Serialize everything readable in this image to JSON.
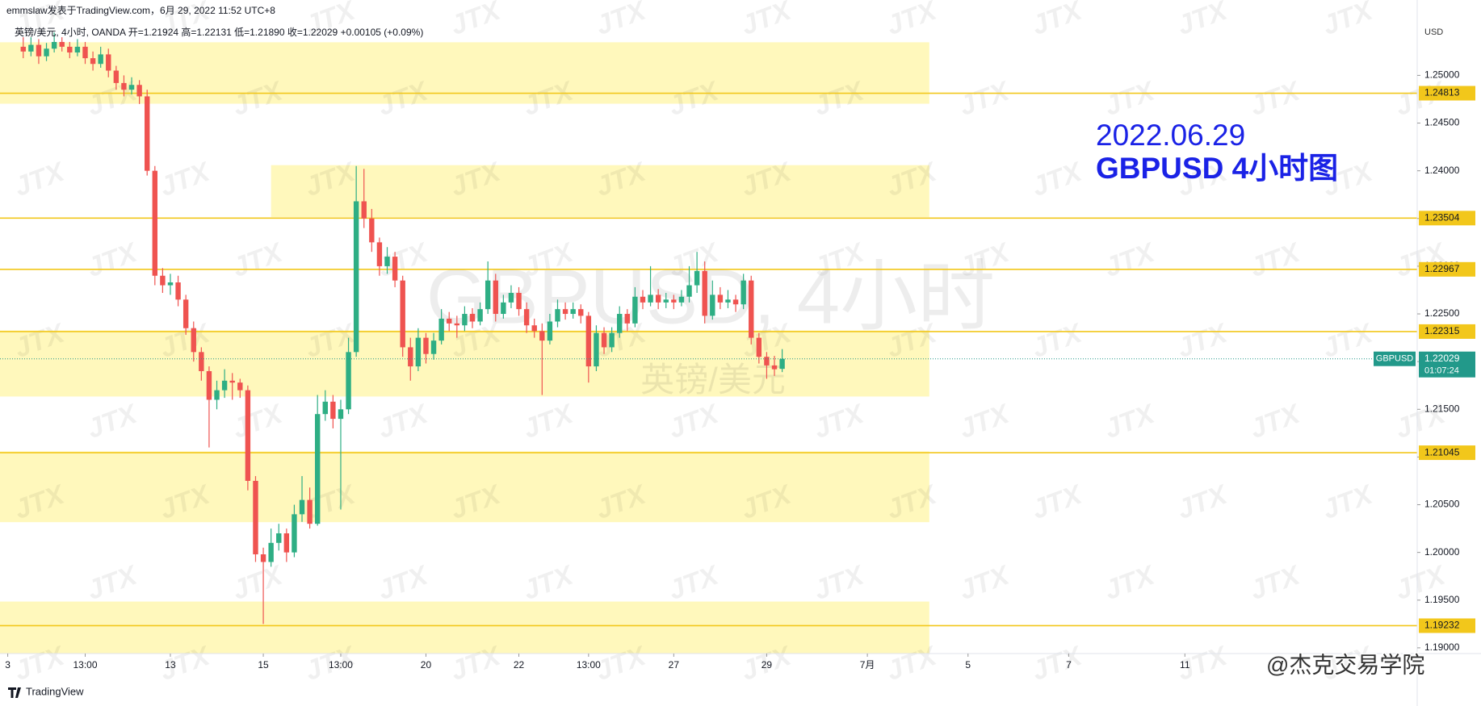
{
  "header": {
    "byline": "emmslaw发表于TradingView.com，6月 29, 2022 11:52 UTC+8",
    "legend": "英镑/美元, 4小时, OANDA  开=1.21924  高=1.22131  低=1.21890  收=1.22029  +0.00105 (+0.09%)"
  },
  "watermark": {
    "symbol": "GBPUSD, 4小时",
    "name": "英镑/美元",
    "brand": "JTX",
    "credit": "@杰克交易学院"
  },
  "footer": {
    "logo": "TradingView"
  },
  "chart_data": {
    "type": "candlestick",
    "title": "2022.06.29",
    "subtitle": "GBPUSD 4小时图",
    "y_unit": "USD",
    "up_color": "#2eae84",
    "down_color": "#ef5350",
    "x": [
      2,
      3,
      4,
      5,
      6,
      7,
      8,
      9,
      10,
      11,
      12,
      13,
      14,
      15,
      16,
      17,
      18,
      19,
      20,
      21,
      22,
      23,
      24,
      25,
      26,
      27,
      28,
      29,
      30,
      31,
      32,
      33,
      34,
      35,
      36,
      37,
      38,
      39,
      40,
      41,
      42,
      43,
      44,
      45,
      46,
      47,
      48,
      49,
      50,
      51,
      52,
      53,
      54,
      55,
      56,
      57,
      58,
      59,
      60,
      61,
      62,
      63,
      64,
      65,
      66,
      67,
      68,
      69,
      70,
      71,
      72,
      73,
      74,
      75,
      76,
      77,
      78,
      79,
      80,
      81,
      82,
      83,
      84,
      85,
      86,
      87,
      88,
      89,
      90,
      91,
      92,
      93,
      94,
      95,
      96,
      97,
      98,
      99,
      100
    ],
    "ohlc": [
      [
        1.253,
        1.254,
        1.2518,
        1.2525
      ],
      [
        1.2525,
        1.254,
        1.252,
        1.2532
      ],
      [
        1.2532,
        1.2538,
        1.2512,
        1.252
      ],
      [
        1.252,
        1.2534,
        1.2515,
        1.2528
      ],
      [
        1.2528,
        1.2545,
        1.2524,
        1.2535
      ],
      [
        1.2535,
        1.254,
        1.2525,
        1.253
      ],
      [
        1.253,
        1.2535,
        1.2518,
        1.2524
      ],
      [
        1.2524,
        1.2538,
        1.252,
        1.253
      ],
      [
        1.253,
        1.2535,
        1.2512,
        1.2518
      ],
      [
        1.2518,
        1.2525,
        1.2505,
        1.2512
      ],
      [
        1.2512,
        1.253,
        1.2508,
        1.2522
      ],
      [
        1.2522,
        1.2528,
        1.2498,
        1.2505
      ],
      [
        1.2505,
        1.251,
        1.2485,
        1.2492
      ],
      [
        1.2492,
        1.25,
        1.2478,
        1.2485
      ],
      [
        1.2485,
        1.2498,
        1.248,
        1.249
      ],
      [
        1.249,
        1.2495,
        1.247,
        1.2478
      ],
      [
        1.2478,
        1.2485,
        1.2395,
        1.24
      ],
      [
        1.24,
        1.2405,
        1.228,
        1.229
      ],
      [
        1.229,
        1.2298,
        1.2272,
        1.228
      ],
      [
        1.228,
        1.2292,
        1.227,
        1.2283
      ],
      [
        1.2283,
        1.229,
        1.2258,
        1.2265
      ],
      [
        1.2265,
        1.227,
        1.2228,
        1.2235
      ],
      [
        1.2235,
        1.2242,
        1.22,
        1.221
      ],
      [
        1.221,
        1.2215,
        1.218,
        1.219
      ],
      [
        1.219,
        1.2195,
        1.211,
        1.216
      ],
      [
        1.216,
        1.218,
        1.215,
        1.217
      ],
      [
        1.217,
        1.2192,
        1.2162,
        1.218
      ],
      [
        1.218,
        1.2188,
        1.216,
        1.2178
      ],
      [
        1.2178,
        1.2182,
        1.2162,
        1.217
      ],
      [
        1.217,
        1.2175,
        1.2065,
        1.2075
      ],
      [
        1.2075,
        1.208,
        1.199,
        1.1998
      ],
      [
        1.1998,
        1.2005,
        1.1925,
        1.199
      ],
      [
        1.199,
        1.2025,
        1.1985,
        1.201
      ],
      [
        1.201,
        1.203,
        1.2002,
        1.202
      ],
      [
        1.202,
        1.2025,
        1.199,
        1.2
      ],
      [
        1.2,
        1.205,
        1.1995,
        1.204
      ],
      [
        1.204,
        1.208,
        1.2032,
        1.2055
      ],
      [
        1.2055,
        1.2068,
        1.2025,
        1.203
      ],
      [
        1.203,
        1.2165,
        1.2028,
        1.2145
      ],
      [
        1.2145,
        1.217,
        1.2138,
        1.2158
      ],
      [
        1.2158,
        1.2165,
        1.213,
        1.214
      ],
      [
        1.214,
        1.216,
        1.2045,
        1.215
      ],
      [
        1.215,
        1.2225,
        1.2145,
        1.221
      ],
      [
        1.221,
        1.2405,
        1.2205,
        1.2368
      ],
      [
        1.2368,
        1.2402,
        1.234,
        1.235
      ],
      [
        1.235,
        1.236,
        1.2315,
        1.2325
      ],
      [
        1.2325,
        1.233,
        1.229,
        1.23
      ],
      [
        1.23,
        1.232,
        1.2292,
        1.231
      ],
      [
        1.231,
        1.2315,
        1.2278,
        1.2285
      ],
      [
        1.2285,
        1.229,
        1.2205,
        1.2215
      ],
      [
        1.2215,
        1.2225,
        1.218,
        1.2195
      ],
      [
        1.2195,
        1.2235,
        1.219,
        1.2225
      ],
      [
        1.2225,
        1.223,
        1.2198,
        1.2208
      ],
      [
        1.2208,
        1.223,
        1.2202,
        1.2222
      ],
      [
        1.2222,
        1.2255,
        1.2218,
        1.2245
      ],
      [
        1.2245,
        1.2252,
        1.2232,
        1.224
      ],
      [
        1.224,
        1.2248,
        1.2225,
        1.2238
      ],
      [
        1.2238,
        1.2258,
        1.2232,
        1.225
      ],
      [
        1.225,
        1.2256,
        1.2235,
        1.2242
      ],
      [
        1.2242,
        1.2262,
        1.2238,
        1.2255
      ],
      [
        1.2255,
        1.2305,
        1.225,
        1.2285
      ],
      [
        1.2285,
        1.2292,
        1.2242,
        1.225
      ],
      [
        1.225,
        1.227,
        1.2245,
        1.2262
      ],
      [
        1.2262,
        1.228,
        1.2256,
        1.2272
      ],
      [
        1.2272,
        1.2278,
        1.2248,
        1.2255
      ],
      [
        1.2255,
        1.2262,
        1.223,
        1.2238
      ],
      [
        1.2238,
        1.2245,
        1.2225,
        1.2232
      ],
      [
        1.2232,
        1.224,
        1.2165,
        1.2222
      ],
      [
        1.2222,
        1.225,
        1.2218,
        1.2242
      ],
      [
        1.2242,
        1.2265,
        1.2236,
        1.2255
      ],
      [
        1.2255,
        1.2262,
        1.2244,
        1.225
      ],
      [
        1.225,
        1.2262,
        1.2245,
        1.2255
      ],
      [
        1.2255,
        1.226,
        1.224,
        1.2248
      ],
      [
        1.2248,
        1.2252,
        1.2178,
        1.2195
      ],
      [
        1.2195,
        1.2238,
        1.219,
        1.223
      ],
      [
        1.223,
        1.2236,
        1.2208,
        1.2215
      ],
      [
        1.2215,
        1.2236,
        1.221,
        1.223
      ],
      [
        1.223,
        1.2258,
        1.2225,
        1.225
      ],
      [
        1.225,
        1.2255,
        1.2232,
        1.224
      ],
      [
        1.224,
        1.2278,
        1.2236,
        1.2268
      ],
      [
        1.2268,
        1.2275,
        1.2255,
        1.2262
      ],
      [
        1.2262,
        1.23,
        1.2258,
        1.227
      ],
      [
        1.227,
        1.2276,
        1.2255,
        1.2262
      ],
      [
        1.2262,
        1.2272,
        1.2256,
        1.2265
      ],
      [
        1.2265,
        1.227,
        1.2255,
        1.2262
      ],
      [
        1.2262,
        1.2275,
        1.2258,
        1.2268
      ],
      [
        1.2268,
        1.23,
        1.2262,
        1.228
      ],
      [
        1.228,
        1.2315,
        1.2272,
        1.2295
      ],
      [
        1.2295,
        1.2305,
        1.224,
        1.2248
      ],
      [
        1.2248,
        1.2285,
        1.2244,
        1.227
      ],
      [
        1.227,
        1.2278,
        1.2255,
        1.2262
      ],
      [
        1.2262,
        1.2275,
        1.2256,
        1.2265
      ],
      [
        1.2265,
        1.227,
        1.2252,
        1.226
      ],
      [
        1.226,
        1.2292,
        1.2255,
        1.2285
      ],
      [
        1.2285,
        1.229,
        1.2218,
        1.2225
      ],
      [
        1.2225,
        1.223,
        1.2198,
        1.2205
      ],
      [
        1.2205,
        1.221,
        1.2182,
        1.2196
      ],
      [
        1.2196,
        1.2206,
        1.2185,
        1.2192
      ],
      [
        1.21924,
        1.22131,
        1.2189,
        1.22029
      ]
    ],
    "xlim": [
      -1,
      182
    ],
    "xticks": [
      {
        "value": 0,
        "label": "3"
      },
      {
        "value": 10,
        "label": "13:00"
      },
      {
        "value": 21,
        "label": "13"
      },
      {
        "value": 33,
        "label": "15"
      },
      {
        "value": 43,
        "label": "13:00"
      },
      {
        "value": 54,
        "label": "20"
      },
      {
        "value": 66,
        "label": "22"
      },
      {
        "value": 75,
        "label": "13:00"
      },
      {
        "value": 86,
        "label": "27"
      },
      {
        "value": 98,
        "label": "29"
      },
      {
        "value": 111,
        "label": "7月"
      },
      {
        "value": 124,
        "label": "5"
      },
      {
        "value": 137,
        "label": "7"
      },
      {
        "value": 152,
        "label": "11"
      }
    ],
    "ylim": [
      1.1894,
      1.2579
    ],
    "yticks": [
      {
        "value": 1.25,
        "label": "1.25000"
      },
      {
        "value": 1.245,
        "label": "1.24500"
      },
      {
        "value": 1.24,
        "label": "1.24000"
      },
      {
        "value": 1.235,
        "label": "1.23500"
      },
      {
        "value": 1.23,
        "label": "1.23000"
      },
      {
        "value": 1.225,
        "label": "1.22500"
      },
      {
        "value": 1.22,
        "label": "1.22000"
      },
      {
        "value": 1.215,
        "label": "1.21500"
      },
      {
        "value": 1.21,
        "label": "1.21000"
      },
      {
        "value": 1.205,
        "label": "1.20500"
      },
      {
        "value": 1.2,
        "label": "1.20000"
      },
      {
        "value": 1.195,
        "label": "1.19500"
      },
      {
        "value": 1.19,
        "label": "1.19000"
      }
    ],
    "level_color": "#f2c71b",
    "levels": [
      1.24813,
      1.23504,
      1.22967,
      1.22315,
      1.21045,
      1.19232
    ],
    "zone_color": "#fff7b0",
    "zones": [
      {
        "from": 1.24703,
        "to": 1.25347,
        "x_from": -1,
        "x_to": 119
      },
      {
        "from": 1.23515,
        "to": 1.24059,
        "x_from": 34,
        "x_to": 119
      },
      {
        "from": 1.21634,
        "to": 1.22327,
        "x_from": -1,
        "x_to": 119
      },
      {
        "from": 1.20317,
        "to": 1.21059,
        "x_from": -1,
        "x_to": 119
      },
      {
        "from": 1.18941,
        "to": 1.19485,
        "x_from": -1,
        "x_to": 119
      }
    ],
    "last": {
      "name": "GBPUSD",
      "value": 1.22029,
      "countdown": "01:07:24",
      "color": "#22998a"
    }
  }
}
